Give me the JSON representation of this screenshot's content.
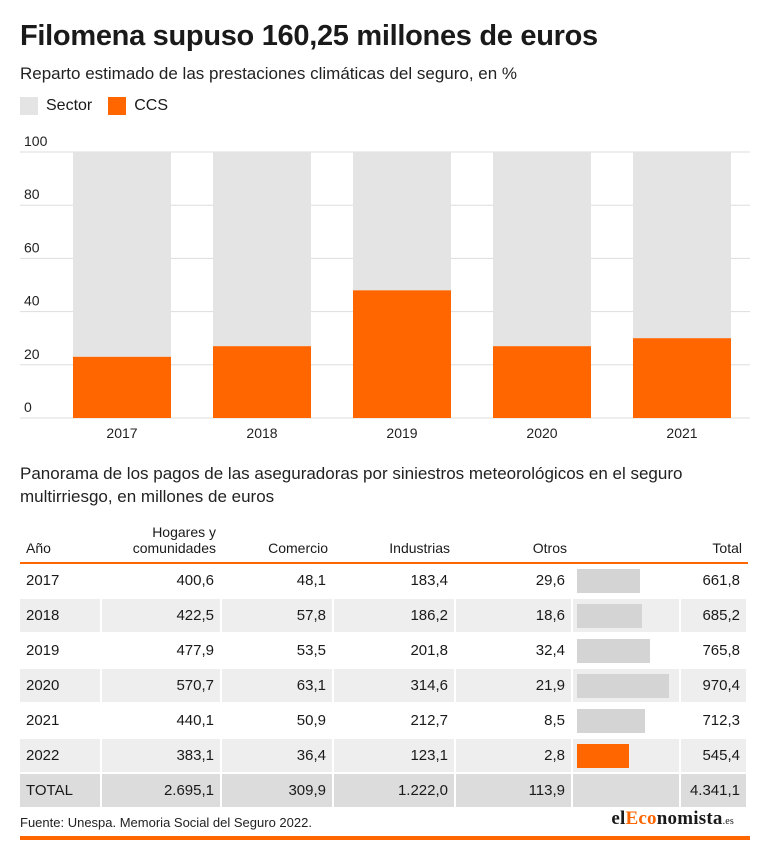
{
  "title": "Filomena supuso 160,25 millones de euros",
  "subtitle": "Reparto estimado de las prestaciones climáticas del seguro, en %",
  "colors": {
    "sector": "#e4e4e4",
    "ccs": "#ff6600",
    "total_bar": "#d4d4d4",
    "accent": "#ff6600"
  },
  "legend": [
    {
      "label": "Sector",
      "color": "#e4e4e4"
    },
    {
      "label": "CCS",
      "color": "#ff6600"
    }
  ],
  "chart_data": {
    "type": "bar",
    "stacked": true,
    "categories": [
      "2017",
      "2018",
      "2019",
      "2020",
      "2021"
    ],
    "series": [
      {
        "name": "CCS",
        "values": [
          23,
          27,
          48,
          27,
          30
        ]
      },
      {
        "name": "Sector",
        "values": [
          77,
          73,
          52,
          73,
          70
        ]
      }
    ],
    "ylim": [
      0,
      100
    ],
    "yticks": [
      "0",
      "20",
      "40",
      "60",
      "80",
      "100"
    ],
    "grid": true,
    "legend_position": "top-left"
  },
  "table": {
    "title": "Panorama de los pagos de las aseguradoras por siniestros meteorológicos en el seguro multirriesgo, en millones de euros",
    "headers": [
      "Año",
      "Hogares y comunidades",
      "Comercio",
      "Industrias",
      "Otros",
      "",
      "Total"
    ],
    "rows": [
      {
        "year": "2017",
        "hogares": "400,6",
        "comercio": "48,1",
        "industrias": "183,4",
        "otros": "29,6",
        "total": "661,8",
        "total_value": 661.8
      },
      {
        "year": "2018",
        "hogares": "422,5",
        "comercio": "57,8",
        "industrias": "186,2",
        "otros": "18,6",
        "total": "685,2",
        "total_value": 685.2
      },
      {
        "year": "2019",
        "hogares": "477,9",
        "comercio": "53,5",
        "industrias": "201,8",
        "otros": "32,4",
        "total": "765,8",
        "total_value": 765.8
      },
      {
        "year": "2020",
        "hogares": "570,7",
        "comercio": "63,1",
        "industrias": "314,6",
        "otros": "21,9",
        "total": "970,4",
        "total_value": 970.4
      },
      {
        "year": "2021",
        "hogares": "440,1",
        "comercio": "50,9",
        "industrias": "212,7",
        "otros": "8,5",
        "total": "712,3",
        "total_value": 712.3
      },
      {
        "year": "2022",
        "hogares": "383,1",
        "comercio": "36,4",
        "industrias": "123,1",
        "otros": "2,8",
        "total": "545,4",
        "total_value": 545.4,
        "highlight": true
      }
    ],
    "total_row": {
      "year": "TOTAL",
      "hogares": "2.695,1",
      "comercio": "309,9",
      "industrias": "1.222,0",
      "otros": "113,9",
      "total": "4.341,1"
    }
  },
  "footer": {
    "source": "Fuente: Unespa. Memoria Social del Seguro 2022."
  },
  "logo": {
    "pre": "el",
    "highlight": "Eco",
    "post": "nomista",
    "suffix": ".es"
  }
}
